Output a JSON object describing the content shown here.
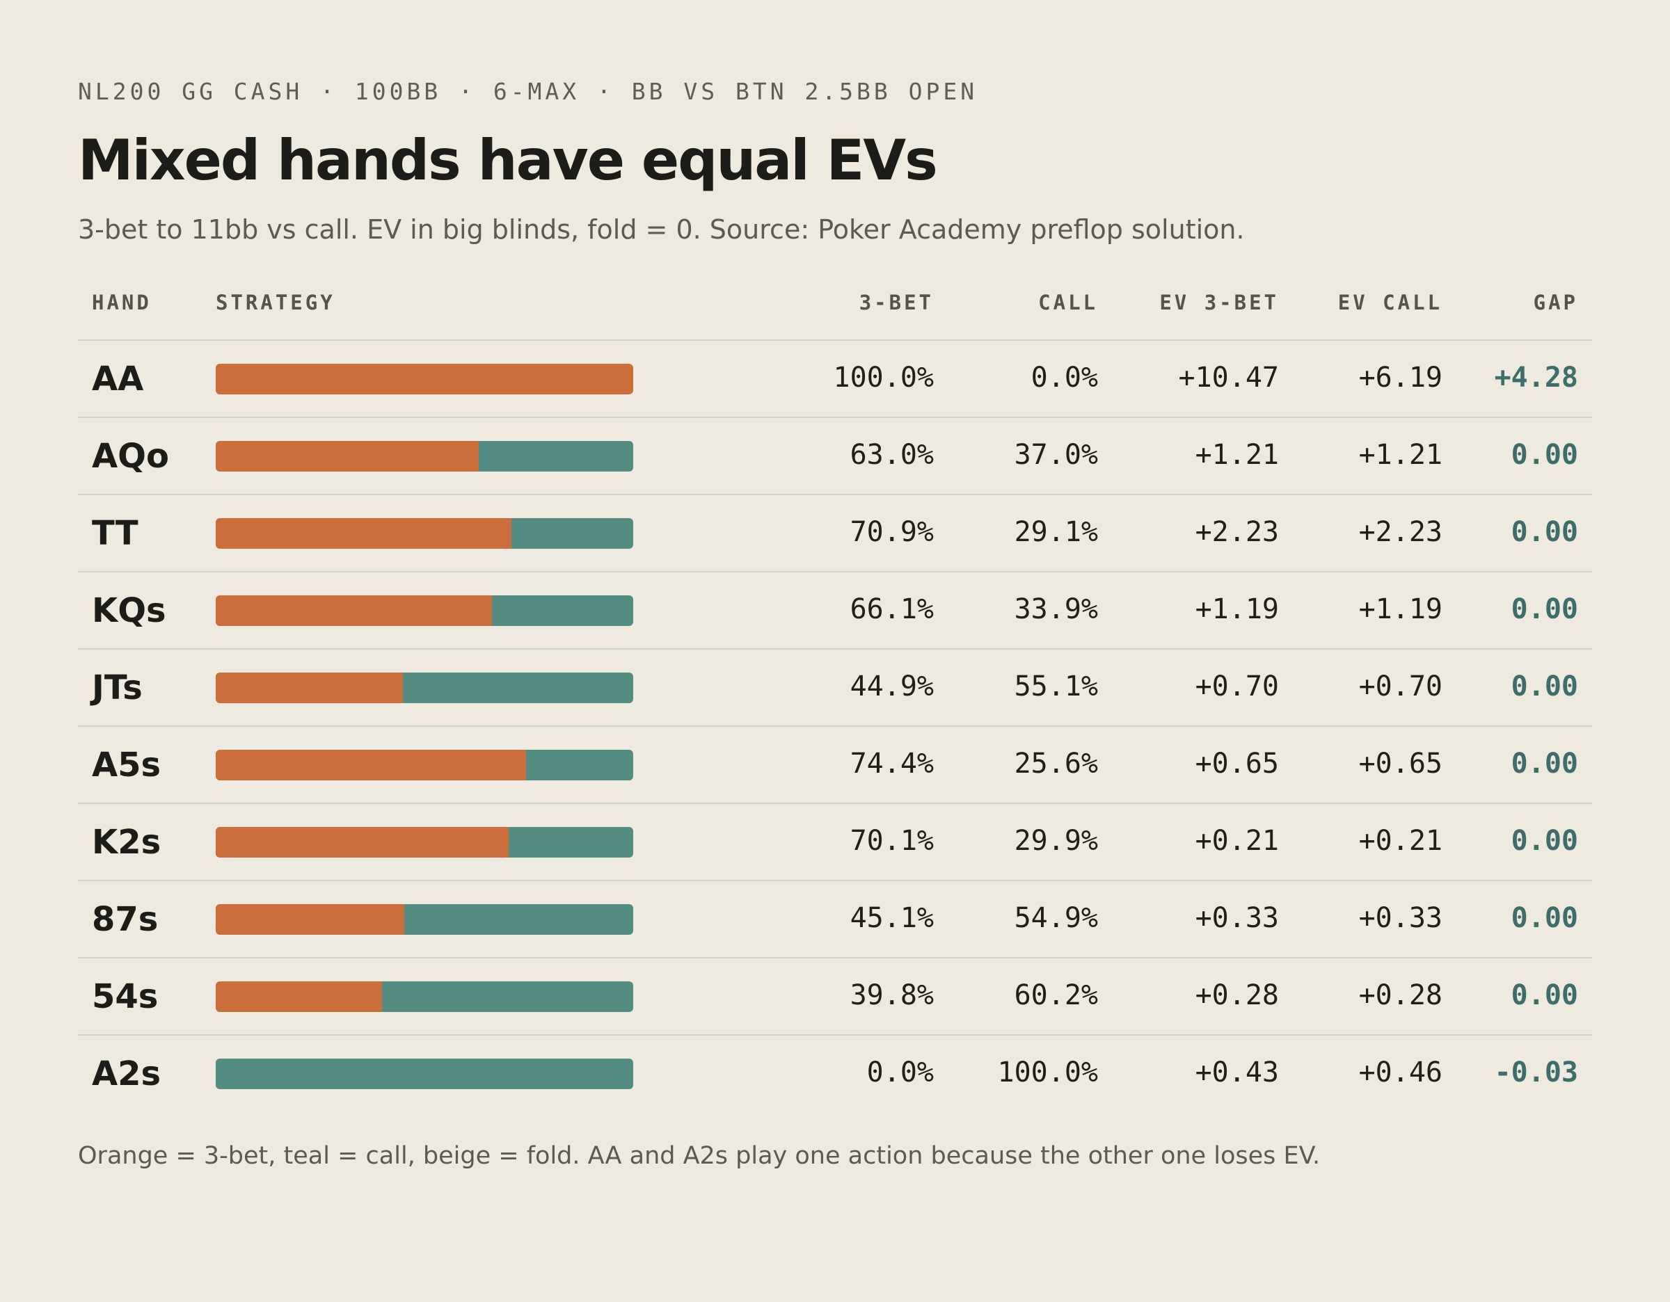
{
  "header": {
    "kicker": "NL200 GG CASH · 100BB · 6-MAX · BB VS BTN 2.5BB OPEN",
    "title": "Mixed hands have equal EVs",
    "subtitle": "3-bet to 11bb vs call. EV in big blinds, fold = 0. Source: Poker Academy preflop solution."
  },
  "columns": {
    "hand": "HAND",
    "strategy": "STRATEGY",
    "threebet": "3-BET",
    "call": "CALL",
    "ev_threebet": "EV 3-BET",
    "ev_call": "EV CALL",
    "gap": "GAP"
  },
  "colors": {
    "threebet": "#cb6e3c",
    "call": "#538c80",
    "fold": "#eeeae0",
    "gap": "#3f6e6a"
  },
  "chart_data": {
    "type": "table",
    "title": "Mixed hands have equal EVs",
    "rows": [
      {
        "hand": "AA",
        "threebet_pct": 100.0,
        "call_pct": 0.0,
        "threebet": "100.0%",
        "call": "0.0%",
        "ev_threebet": "+10.47",
        "ev_call": "+6.19",
        "gap": "+4.28"
      },
      {
        "hand": "AQo",
        "threebet_pct": 63.0,
        "call_pct": 37.0,
        "threebet": "63.0%",
        "call": "37.0%",
        "ev_threebet": "+1.21",
        "ev_call": "+1.21",
        "gap": "0.00"
      },
      {
        "hand": "TT",
        "threebet_pct": 70.9,
        "call_pct": 29.1,
        "threebet": "70.9%",
        "call": "29.1%",
        "ev_threebet": "+2.23",
        "ev_call": "+2.23",
        "gap": "0.00"
      },
      {
        "hand": "KQs",
        "threebet_pct": 66.1,
        "call_pct": 33.9,
        "threebet": "66.1%",
        "call": "33.9%",
        "ev_threebet": "+1.19",
        "ev_call": "+1.19",
        "gap": "0.00"
      },
      {
        "hand": "JTs",
        "threebet_pct": 44.9,
        "call_pct": 55.1,
        "threebet": "44.9%",
        "call": "55.1%",
        "ev_threebet": "+0.70",
        "ev_call": "+0.70",
        "gap": "0.00"
      },
      {
        "hand": "A5s",
        "threebet_pct": 74.4,
        "call_pct": 25.6,
        "threebet": "74.4%",
        "call": "25.6%",
        "ev_threebet": "+0.65",
        "ev_call": "+0.65",
        "gap": "0.00"
      },
      {
        "hand": "K2s",
        "threebet_pct": 70.1,
        "call_pct": 29.9,
        "threebet": "70.1%",
        "call": "29.9%",
        "ev_threebet": "+0.21",
        "ev_call": "+0.21",
        "gap": "0.00"
      },
      {
        "hand": "87s",
        "threebet_pct": 45.1,
        "call_pct": 54.9,
        "threebet": "45.1%",
        "call": "54.9%",
        "ev_threebet": "+0.33",
        "ev_call": "+0.33",
        "gap": "0.00"
      },
      {
        "hand": "54s",
        "threebet_pct": 39.8,
        "call_pct": 60.2,
        "threebet": "39.8%",
        "call": "60.2%",
        "ev_threebet": "+0.28",
        "ev_call": "+0.28",
        "gap": "0.00"
      },
      {
        "hand": "A2s",
        "threebet_pct": 0.0,
        "call_pct": 100.0,
        "threebet": "0.0%",
        "call": "100.0%",
        "ev_threebet": "+0.43",
        "ev_call": "+0.46",
        "gap": "-0.03"
      }
    ]
  },
  "footnote": "Orange = 3-bet, teal = call, beige = fold. AA and A2s play one action because the other one loses EV."
}
